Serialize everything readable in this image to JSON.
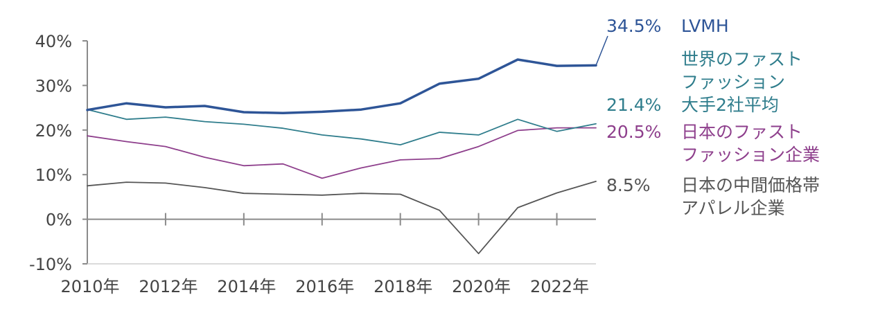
{
  "chart_data": {
    "type": "line",
    "title": "",
    "xlabel": "",
    "ylabel": "",
    "x": [
      2010,
      2011,
      2012,
      2013,
      2014,
      2015,
      2016,
      2017,
      2018,
      2019,
      2020,
      2021,
      2022,
      2023
    ],
    "x_tick_values": [
      2010,
      2012,
      2014,
      2016,
      2018,
      2020,
      2022
    ],
    "x_tick_labels": [
      "2010年",
      "2012年",
      "2014年",
      "2016年",
      "2018年",
      "2020年",
      "2022年"
    ],
    "x_axis_ticks": [
      2012,
      2014,
      2016,
      2018,
      2020,
      2022
    ],
    "y_ticks": [
      40,
      30,
      20,
      10,
      0,
      -10
    ],
    "y_tick_labels": [
      "40%",
      "30%",
      "20%",
      "10%",
      "0%",
      "-10%"
    ],
    "ylim": [
      -10,
      40
    ],
    "xlim": [
      2010,
      2023
    ],
    "grid": false,
    "series": [
      {
        "key": "lvmh",
        "color": "#2e5597",
        "stroke": 3.5,
        "end_label_value": "34.5%",
        "label_lines": [
          "LVMH"
        ],
        "values": [
          24.5,
          26.0,
          25.1,
          25.4,
          24.0,
          23.8,
          24.1,
          24.6,
          26.0,
          30.4,
          31.5,
          35.8,
          34.4,
          34.5
        ]
      },
      {
        "key": "global-fast-fashion",
        "color": "#2f7d8c",
        "stroke": 1.8,
        "end_label_value": "21.4%",
        "label_lines": [
          "世界のファスト",
          "ファッション",
          "大手2社平均"
        ],
        "values": [
          24.6,
          22.4,
          22.9,
          21.9,
          21.3,
          20.4,
          18.9,
          18.0,
          16.7,
          19.5,
          18.9,
          22.4,
          19.7,
          21.4
        ]
      },
      {
        "key": "japan-fast-fashion",
        "color": "#8e3f8c",
        "stroke": 1.8,
        "end_label_value": "20.5%",
        "label_lines": [
          "日本のファスト",
          "ファッション企業"
        ],
        "values": [
          18.7,
          17.4,
          16.3,
          13.9,
          12.0,
          12.4,
          9.2,
          11.5,
          13.3,
          13.6,
          16.3,
          19.9,
          20.5,
          20.5
        ]
      },
      {
        "key": "japan-mid-price",
        "color": "#555555",
        "stroke": 1.8,
        "end_label_value": "8.5%",
        "label_lines": [
          "日本の中間価格帯",
          "アパレル企業"
        ],
        "values": [
          7.5,
          8.3,
          8.1,
          7.1,
          5.8,
          5.6,
          5.4,
          5.8,
          5.6,
          2.0,
          -7.7,
          2.6,
          5.9,
          8.5
        ]
      }
    ]
  }
}
